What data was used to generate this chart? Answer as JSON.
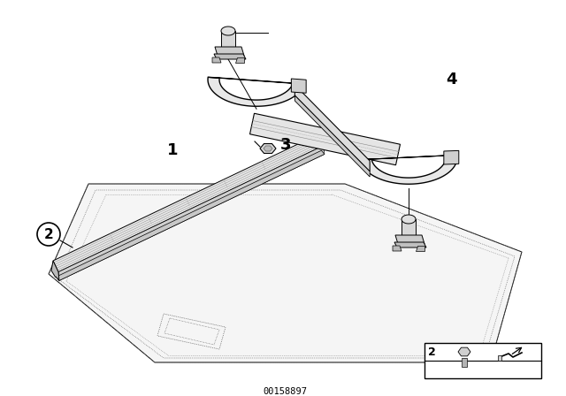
{
  "background_color": "#ffffff",
  "line_color": "#000000",
  "figure_width": 6.4,
  "figure_height": 4.48,
  "dpi": 100,
  "footer_text": "00158897"
}
